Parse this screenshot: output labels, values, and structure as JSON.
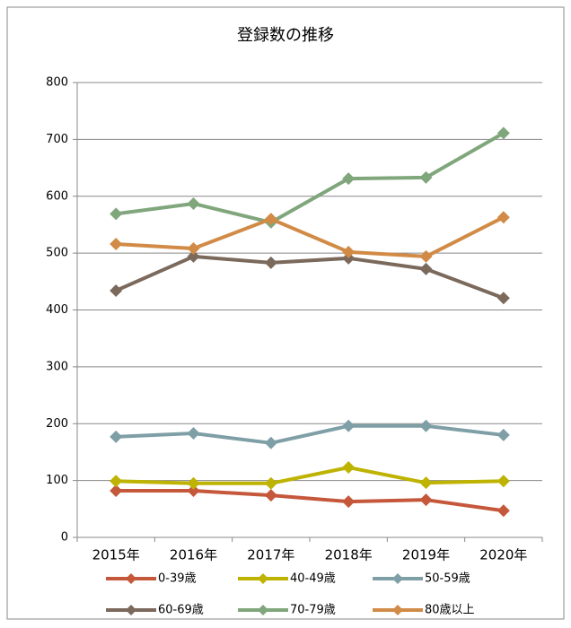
{
  "chart_data": {
    "type": "line",
    "title": "登録数の推移",
    "categories": [
      "2015年",
      "2016年",
      "2017年",
      "2018年",
      "2019年",
      "2020年"
    ],
    "series": [
      {
        "name": "0-39歳",
        "color": "#c5573b",
        "values": [
          82,
          82,
          74,
          63,
          66,
          47
        ]
      },
      {
        "name": "40-49歳",
        "color": "#bdb300",
        "values": [
          99,
          95,
          95,
          123,
          96,
          99
        ]
      },
      {
        "name": "50-59歳",
        "color": "#7f9fa6",
        "values": [
          177,
          183,
          166,
          196,
          196,
          180
        ]
      },
      {
        "name": "60-69歳",
        "color": "#7b695c",
        "values": [
          434,
          494,
          483,
          491,
          472,
          421
        ]
      },
      {
        "name": "70-79歳",
        "color": "#80a67c",
        "values": [
          569,
          587,
          554,
          631,
          633,
          711
        ]
      },
      {
        "name": "80歳以上",
        "color": "#d18b46",
        "values": [
          516,
          508,
          560,
          502,
          494,
          563
        ]
      }
    ],
    "ylim": [
      0,
      800
    ],
    "yticks": [
      0,
      100,
      200,
      300,
      400,
      500,
      600,
      700,
      800
    ],
    "grid": true,
    "legend": "bottom"
  }
}
